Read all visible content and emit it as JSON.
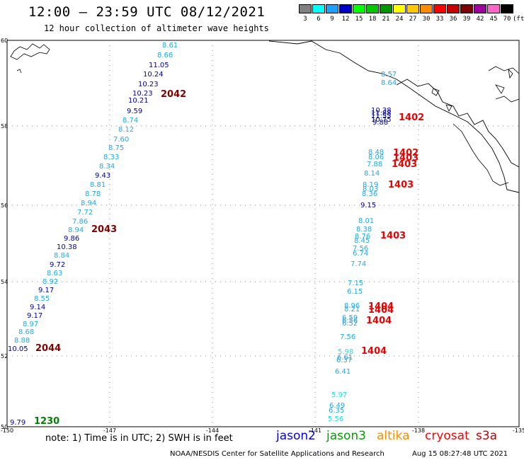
{
  "header": {
    "title": "12:00 — 23:59 UTC 08/12/2021",
    "subtitle": "12 hour collection of altimeter wave heights"
  },
  "color_scale": {
    "unit": "(ft)",
    "bins": [
      {
        "label": "3",
        "color": "#808080"
      },
      {
        "label": "6",
        "color": "#00ffff"
      },
      {
        "label": "9",
        "color": "#1ea0ff"
      },
      {
        "label": "12",
        "color": "#0000c8"
      },
      {
        "label": "15",
        "color": "#00ff00"
      },
      {
        "label": "18",
        "color": "#00c800"
      },
      {
        "label": "21",
        "color": "#009600"
      },
      {
        "label": "24",
        "color": "#ffff00"
      },
      {
        "label": "27",
        "color": "#ffc800"
      },
      {
        "label": "30",
        "color": "#ff8c00"
      },
      {
        "label": "33",
        "color": "#ff0000"
      },
      {
        "label": "36",
        "color": "#c80000"
      },
      {
        "label": "39",
        "color": "#800000"
      },
      {
        "label": "42",
        "color": "#a000a0"
      },
      {
        "label": "45",
        "color": "#ff64c8"
      },
      {
        "label": "70",
        "color": "#000000"
      }
    ]
  },
  "map": {
    "lat_labels": [
      "60",
      "58",
      "56",
      "54",
      "52",
      "50"
    ],
    "lon_labels": [
      "-150",
      "-147",
      "-144",
      "-141",
      "-138",
      "-135"
    ],
    "color_light": "#1eaaf0",
    "color_dark": "#0000aa",
    "color_cyan": "#22e0e0",
    "color_time_dark": "#800000",
    "color_time_red": "#ee0000",
    "color_time_green": "#008000",
    "track_west": [
      {
        "v": "8.61",
        "c": "light"
      },
      {
        "v": "8.66",
        "c": "light"
      },
      {
        "v": "11.05",
        "c": "dark"
      },
      {
        "v": "10.24",
        "c": "dark"
      },
      {
        "v": "10.23",
        "c": "dark"
      },
      {
        "v": "10.23",
        "c": "dark"
      },
      {
        "v": "10.21",
        "c": "dark"
      },
      {
        "v": "9.59",
        "c": "dark"
      },
      {
        "v": "8.74",
        "c": "light"
      },
      {
        "v": "8.12",
        "c": "light"
      },
      {
        "v": "7.60",
        "c": "light"
      },
      {
        "v": "8.75",
        "c": "light"
      },
      {
        "v": "8.33",
        "c": "light"
      },
      {
        "v": "8.34",
        "c": "light"
      },
      {
        "v": "9.43",
        "c": "dark"
      },
      {
        "v": "8.81",
        "c": "light"
      },
      {
        "v": "8.78",
        "c": "light"
      },
      {
        "v": "8.94",
        "c": "light"
      },
      {
        "v": "7.72",
        "c": "light"
      },
      {
        "v": "7.86",
        "c": "light"
      },
      {
        "v": "8.94",
        "c": "light"
      },
      {
        "v": "9.86",
        "c": "dark"
      },
      {
        "v": "10.38",
        "c": "dark"
      },
      {
        "v": "8.84",
        "c": "light"
      },
      {
        "v": "9.72",
        "c": "dark"
      },
      {
        "v": "8.63",
        "c": "light"
      },
      {
        "v": "8.92",
        "c": "light"
      },
      {
        "v": "9.17",
        "c": "dark"
      },
      {
        "v": "8.55",
        "c": "light"
      },
      {
        "v": "9.14",
        "c": "dark"
      },
      {
        "v": "9.17",
        "c": "dark"
      },
      {
        "v": "8.97",
        "c": "light"
      },
      {
        "v": "8.68",
        "c": "light"
      },
      {
        "v": "8.88",
        "c": "light"
      },
      {
        "v": "10.05",
        "c": "dark"
      }
    ],
    "track_west_extra": {
      "v": "9.79",
      "c": "dark"
    },
    "track_east": [
      {
        "v": "8.57",
        "c": "light"
      },
      {
        "v": "8.64",
        "c": "light"
      },
      {
        "v": "10.38",
        "c": "dark"
      },
      {
        "v": "11.88",
        "c": "dark"
      },
      {
        "v": "11.55",
        "c": "dark"
      },
      {
        "v": "10.75",
        "c": "dark"
      },
      {
        "v": "9.88",
        "c": "dark"
      },
      {
        "v": "8.48",
        "c": "light"
      },
      {
        "v": "8.06",
        "c": "light"
      },
      {
        "v": "7.88",
        "c": "light"
      },
      {
        "v": "8.14",
        "c": "light"
      },
      {
        "v": "8.19",
        "c": "light"
      },
      {
        "v": "8.03",
        "c": "light"
      },
      {
        "v": "8.36",
        "c": "light"
      },
      {
        "v": "9.15",
        "c": "dark"
      },
      {
        "v": "8.01",
        "c": "light"
      },
      {
        "v": "8.38",
        "c": "light"
      },
      {
        "v": "8.76",
        "c": "light"
      },
      {
        "v": "8.45",
        "c": "light"
      },
      {
        "v": "7.56",
        "c": "light"
      },
      {
        "v": "6.74",
        "c": "light"
      },
      {
        "v": "7.74",
        "c": "light"
      },
      {
        "v": "7.15",
        "c": "light"
      },
      {
        "v": "6.15",
        "c": "light"
      },
      {
        "v": "8.96",
        "c": "light"
      },
      {
        "v": "8.21",
        "c": "light"
      },
      {
        "v": "6.59",
        "c": "light"
      },
      {
        "v": "6.56",
        "c": "light"
      },
      {
        "v": "6.52",
        "c": "light"
      },
      {
        "v": "7.56",
        "c": "light"
      },
      {
        "v": "5.98",
        "c": "cyan"
      },
      {
        "v": "6.61",
        "c": "light"
      },
      {
        "v": "6.37",
        "c": "light"
      },
      {
        "v": "6.41",
        "c": "light"
      },
      {
        "v": "5.97",
        "c": "cyan"
      },
      {
        "v": "6.49",
        "c": "light"
      },
      {
        "v": "6.35",
        "c": "light"
      },
      {
        "v": "5.56",
        "c": "cyan"
      }
    ],
    "time_labels": [
      {
        "t": "2042",
        "c": "dark"
      },
      {
        "t": "2043",
        "c": "dark"
      },
      {
        "t": "2044",
        "c": "dark"
      },
      {
        "t": "1230",
        "c": "green"
      },
      {
        "t": "1402",
        "c": "red"
      },
      {
        "t": "1402",
        "c": "red"
      },
      {
        "t": "1403",
        "c": "red"
      },
      {
        "t": "1403",
        "c": "red"
      },
      {
        "t": "1403",
        "c": "red"
      },
      {
        "t": "1403",
        "c": "red"
      },
      {
        "t": "1404",
        "c": "red"
      },
      {
        "t": "1404",
        "c": "red"
      },
      {
        "t": "1404",
        "c": "red"
      },
      {
        "t": "1404",
        "c": "red"
      }
    ]
  },
  "footer": {
    "note": "note: 1) Time is in UTC; 2) SWH is in feet",
    "satellites": [
      {
        "name": "jason2",
        "color": "#0000ff"
      },
      {
        "name": "jason3",
        "color": "#00a000"
      },
      {
        "name": "altika",
        "color": "#ff8c00"
      },
      {
        "name": "cryosat",
        "color": "#ff0000"
      },
      {
        "name": "s3a",
        "color": "#c80000"
      }
    ],
    "credit": "NOAA/NESDIS Center for Satellite Applications and Research",
    "timestamp": "Aug 15 08:27:48 UTC 2021"
  }
}
